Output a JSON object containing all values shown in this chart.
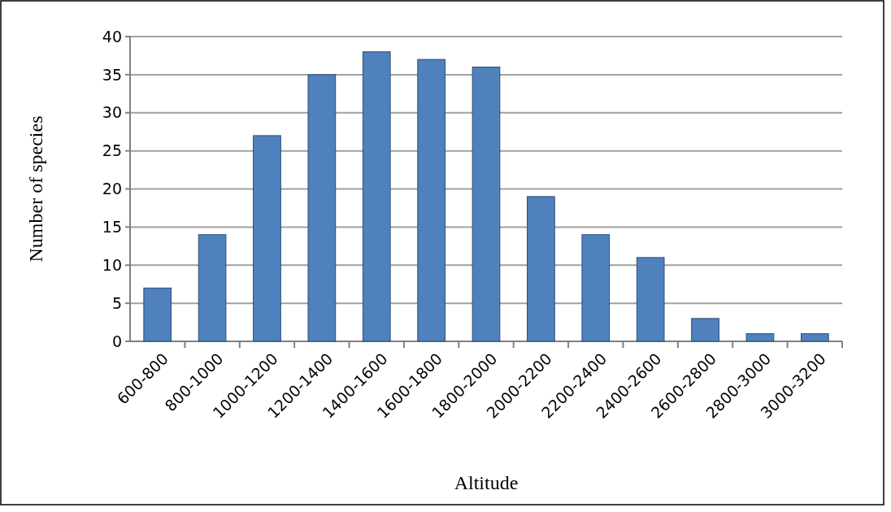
{
  "chart_data": {
    "type": "bar",
    "xlabel": "Altitude",
    "ylabel": "Number of species",
    "categories": [
      "600-800",
      "800-1000",
      "1000-1200",
      "1200-1400",
      "1400-1600",
      "1600-1800",
      "1800-2000",
      "2000-2200",
      "2200-2400",
      "2400-2600",
      "2600-2800",
      "2800-3000",
      "3000-3200"
    ],
    "values": [
      7,
      14,
      27,
      35,
      38,
      37,
      36,
      19,
      14,
      11,
      3,
      1,
      1
    ],
    "color": "#4f81bd",
    "ylim": [
      0,
      40
    ],
    "yticks": [
      0,
      5,
      10,
      15,
      20,
      25,
      30,
      35,
      40
    ],
    "grid": "y"
  }
}
